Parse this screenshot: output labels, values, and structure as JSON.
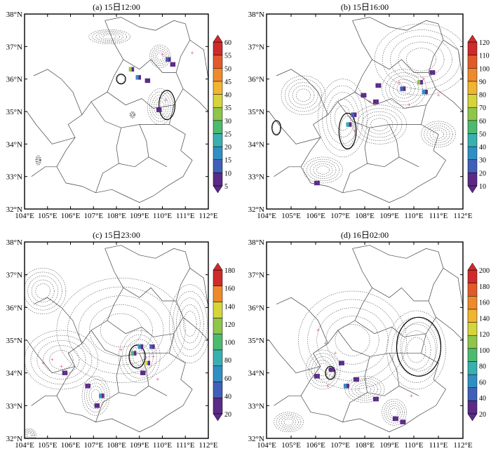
{
  "chart_data": [
    {
      "type": "heatmap",
      "title": "(a) 15日12:00",
      "xlim": [
        104,
        112
      ],
      "ylim": [
        32,
        38
      ],
      "xticks": [
        "104°E",
        "105°E",
        "106°E",
        "107°E",
        "108°E",
        "109°E",
        "110°E",
        "111°E",
        "112°E"
      ],
      "yticks": [
        "32°N",
        "33°N",
        "34°N",
        "35°N",
        "36°N",
        "37°N",
        "38°N"
      ],
      "colorbar": [
        5,
        10,
        15,
        20,
        25,
        30,
        35,
        40,
        45,
        50,
        55,
        60
      ],
      "colorbar_labels": [
        "5",
        "10",
        "15",
        "20",
        "25",
        "30",
        "35",
        "40",
        "45",
        "50",
        "55",
        "60"
      ],
      "colors": [
        "#5b2a86",
        "#3f5fb8",
        "#2f8fc4",
        "#39b0b0",
        "#4dbb6f",
        "#8fc548",
        "#d6d43b",
        "#f2b531",
        "#ee8a2c",
        "#e25a2a",
        "#cf2b2b"
      ],
      "cells": [
        [
          108.6,
          36.3,
          30
        ],
        [
          108.9,
          36.05,
          15
        ],
        [
          109.3,
          35.95,
          5
        ],
        [
          110.2,
          36.6,
          10
        ],
        [
          110.4,
          36.45,
          5
        ],
        [
          109.8,
          35.05,
          5
        ]
      ],
      "markers": [
        [
          110.0,
          36.75
        ],
        [
          111.3,
          36.8
        ],
        [
          110.15,
          35.35
        ]
      ],
      "contours": [
        [
          107.7,
          37.3,
          0.9,
          0.22,
          "d"
        ],
        [
          109.9,
          36.7,
          0.45,
          0.35,
          "d"
        ],
        [
          110.2,
          35.2,
          0.35,
          0.45,
          "s"
        ],
        [
          109.9,
          35.15,
          0.55,
          0.55,
          "d"
        ],
        [
          108.2,
          36.0,
          0.2,
          0.15,
          "s"
        ],
        [
          104.6,
          33.5,
          0.12,
          0.15,
          "d"
        ],
        [
          108.7,
          34.9,
          0.12,
          0.1,
          "d"
        ]
      ]
    },
    {
      "type": "heatmap",
      "title": "(b) 15日16:00",
      "xlim": [
        104,
        112
      ],
      "ylim": [
        32,
        38
      ],
      "xticks": [
        "104°E",
        "105°E",
        "106°E",
        "107°E",
        "108°E",
        "109°E",
        "110°E",
        "111°E",
        "112°E"
      ],
      "yticks": [
        "32°N",
        "33°N",
        "34°N",
        "35°N",
        "36°N",
        "37°N",
        "38°N"
      ],
      "colorbar": [
        10,
        20,
        30,
        40,
        50,
        60,
        70,
        80,
        90,
        100,
        110,
        120
      ],
      "colorbar_labels": [
        "10",
        "20",
        "30",
        "40",
        "50",
        "60",
        "70",
        "80",
        "90",
        "100",
        "110",
        "120"
      ],
      "colors": [
        "#5b2a86",
        "#3f5fb8",
        "#2f8fc4",
        "#39b0b0",
        "#4dbb6f",
        "#8fc548",
        "#d6d43b",
        "#f2b531",
        "#ee8a2c",
        "#e25a2a",
        "#cf2b2b"
      ],
      "cells": [
        [
          107.3,
          34.6,
          40
        ],
        [
          107.5,
          34.9,
          20
        ],
        [
          107.9,
          35.5,
          10
        ],
        [
          108.5,
          35.8,
          10
        ],
        [
          109.5,
          35.7,
          20
        ],
        [
          110.2,
          35.9,
          60
        ],
        [
          110.4,
          35.6,
          30
        ],
        [
          110.7,
          36.2,
          10
        ],
        [
          106.0,
          32.8,
          10
        ],
        [
          108.4,
          35.3,
          10
        ]
      ],
      "markers": [
        [
          109.4,
          35.9
        ],
        [
          109.8,
          35.2
        ],
        [
          108.2,
          35.3
        ],
        [
          107.6,
          34.4
        ],
        [
          110.4,
          36.0
        ],
        [
          111.0,
          35.5
        ]
      ],
      "contours": [
        [
          107.1,
          34.8,
          1.0,
          1.2,
          "d"
        ],
        [
          110.3,
          36.6,
          1.9,
          1.1,
          "d"
        ],
        [
          109.6,
          35.7,
          0.9,
          0.6,
          "d"
        ],
        [
          105.5,
          35.5,
          0.9,
          0.6,
          "d"
        ],
        [
          106.3,
          33.2,
          0.8,
          0.4,
          "d"
        ],
        [
          111.0,
          34.3,
          0.7,
          0.4,
          "d"
        ],
        [
          108.6,
          34.6,
          1.1,
          0.6,
          "d"
        ],
        [
          104.4,
          34.5,
          0.18,
          0.22,
          "s"
        ],
        [
          107.3,
          34.4,
          0.35,
          0.55,
          "s"
        ]
      ]
    },
    {
      "type": "heatmap",
      "title": "(c) 15日23:00",
      "xlim": [
        104,
        112
      ],
      "ylim": [
        32,
        38
      ],
      "xticks": [
        "104°E",
        "105°E",
        "106°E",
        "107°E",
        "108°E",
        "109°E",
        "110°E",
        "111°E",
        "112°E"
      ],
      "yticks": [
        "32°N",
        "33°N",
        "34°N",
        "35°N",
        "36°N",
        "37°N",
        "38°N"
      ],
      "colorbar": [
        20,
        40,
        60,
        80,
        100,
        120,
        140,
        160,
        180
      ],
      "colorbar_labels": [
        "20",
        "40",
        "60",
        "80",
        "100",
        "120",
        "140",
        "160",
        "180"
      ],
      "colors": [
        "#5b2a86",
        "#3f5fb8",
        "#2f8fc4",
        "#39b0b0",
        "#4dbb6f",
        "#8fc548",
        "#d6d43b",
        "#ee8a2c",
        "#cf2b2b"
      ],
      "cells": [
        [
          108.7,
          34.6,
          100
        ],
        [
          109.0,
          34.8,
          60
        ],
        [
          109.3,
          34.3,
          140
        ],
        [
          109.5,
          34.8,
          40
        ],
        [
          107.3,
          33.3,
          60
        ],
        [
          106.7,
          33.6,
          20
        ],
        [
          105.7,
          34.0,
          20
        ],
        [
          107.1,
          33.0,
          20
        ],
        [
          109.1,
          34.0,
          20
        ]
      ],
      "markers": [
        [
          104.8,
          34.3
        ],
        [
          105.2,
          34.4
        ],
        [
          105.6,
          34.2
        ],
        [
          109.8,
          33.8
        ],
        [
          108.2,
          34.7
        ],
        [
          109.6,
          34.5
        ]
      ],
      "contours": [
        [
          105.6,
          34.4,
          1.6,
          0.9,
          "d"
        ],
        [
          108.2,
          35.3,
          2.8,
          1.6,
          "d"
        ],
        [
          109.0,
          34.5,
          0.9,
          0.8,
          "d"
        ],
        [
          111.2,
          35.5,
          0.9,
          1.2,
          "d"
        ],
        [
          104.8,
          36.5,
          1.0,
          0.7,
          "d"
        ],
        [
          107.1,
          33.3,
          0.6,
          0.6,
          "d"
        ],
        [
          104.2,
          32.1,
          0.3,
          0.2,
          "d"
        ],
        [
          108.9,
          34.5,
          0.35,
          0.35,
          "s"
        ]
      ]
    },
    {
      "type": "heatmap",
      "title": "(d) 16日02:00",
      "xlim": [
        104,
        112
      ],
      "ylim": [
        32,
        38
      ],
      "xticks": [
        "104°E",
        "105°E",
        "106°E",
        "107°E",
        "108°E",
        "109°E",
        "110°E",
        "111°E",
        "112°E"
      ],
      "yticks": [
        "32°N",
        "33°N",
        "34°N",
        "35°N",
        "36°N",
        "37°N",
        "38°N"
      ],
      "colorbar": [
        20,
        40,
        60,
        80,
        100,
        120,
        140,
        160,
        180,
        200
      ],
      "colorbar_labels": [
        "20",
        "40",
        "60",
        "80",
        "100",
        "120",
        "140",
        "160",
        "180",
        "200"
      ],
      "colors": [
        "#5b2a86",
        "#3f5fb8",
        "#2f8fc4",
        "#39b0b0",
        "#4dbb6f",
        "#8fc548",
        "#d6d43b",
        "#f2b531",
        "#ee8a2c",
        "#e25a2a",
        "#cf2b2b"
      ],
      "cells": [
        [
          106.6,
          34.1,
          20
        ],
        [
          107.2,
          33.6,
          60
        ],
        [
          107.0,
          34.3,
          20
        ],
        [
          109.2,
          32.6,
          20
        ],
        [
          109.5,
          32.5,
          20
        ],
        [
          106.0,
          33.9,
          20
        ],
        [
          107.6,
          33.8,
          20
        ],
        [
          108.4,
          33.2,
          20
        ]
      ],
      "markers": [
        [
          106.1,
          35.3
        ],
        [
          106.4,
          34.9
        ],
        [
          106.8,
          34.6
        ],
        [
          109.9,
          33.3
        ],
        [
          106.5,
          33.6
        ]
      ],
      "contours": [
        [
          107.5,
          35.0,
          2.2,
          1.5,
          "d"
        ],
        [
          110.1,
          34.7,
          1.2,
          1.2,
          "d"
        ],
        [
          106.3,
          34.1,
          0.7,
          0.6,
          "d"
        ],
        [
          109.2,
          32.8,
          0.5,
          0.4,
          "d"
        ],
        [
          104.9,
          32.5,
          0.6,
          0.3,
          "d"
        ],
        [
          108.0,
          33.5,
          0.8,
          0.4,
          "d"
        ],
        [
          110.2,
          34.8,
          0.9,
          0.9,
          "s"
        ],
        [
          106.6,
          34.0,
          0.2,
          0.2,
          "s"
        ]
      ]
    }
  ]
}
